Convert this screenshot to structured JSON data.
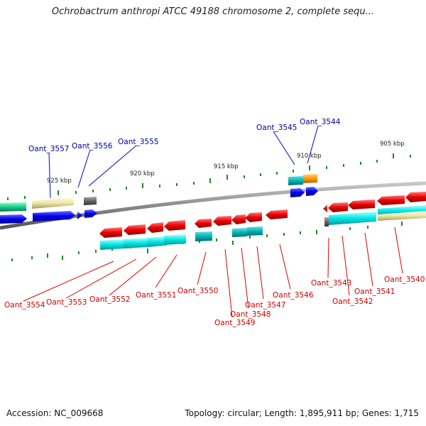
{
  "title": "Ochrobactrum anthropi ATCC 49188 chromosome 2, complete sequ...",
  "footer": {
    "accession": "Accession: NC_009668",
    "topology": "Topology: circular; Length: 1,895,911 bp; Genes: 1,715"
  },
  "colors": {
    "forward_cds": "#0000ee",
    "reverse_cds": "#ee0000",
    "forward_label": "#000099",
    "reverse_label": "#cc0000",
    "cog_cyan": "#00e5e5",
    "cog_teal": "#00b5b5",
    "cog_yellow": "#efe6a6",
    "cog_green": "#18cc8a",
    "cog_orange": "#ff9a00",
    "cog_gray": "#666666",
    "backbone": "#8c8c8c",
    "tick": "#1a8a1a"
  },
  "scale_labels": [
    "925 kbp",
    "920 kbp",
    "915 kbp",
    "910 kbp",
    "905 kbp"
  ],
  "forward_genes": [
    "Oant_3557",
    "Oant_3556",
    "Oant_3555",
    "Oant_3545",
    "Oant_3544"
  ],
  "reverse_genes": [
    "Oant_3554",
    "Oant_3553",
    "Oant_3552",
    "Oant_3551",
    "Oant_3550",
    "Oant_3549",
    "Oant_3548",
    "Oant_3547",
    "Oant_3546",
    "Oant_3543",
    "Oant_3542",
    "Oant_3541",
    "Oant_3540"
  ]
}
